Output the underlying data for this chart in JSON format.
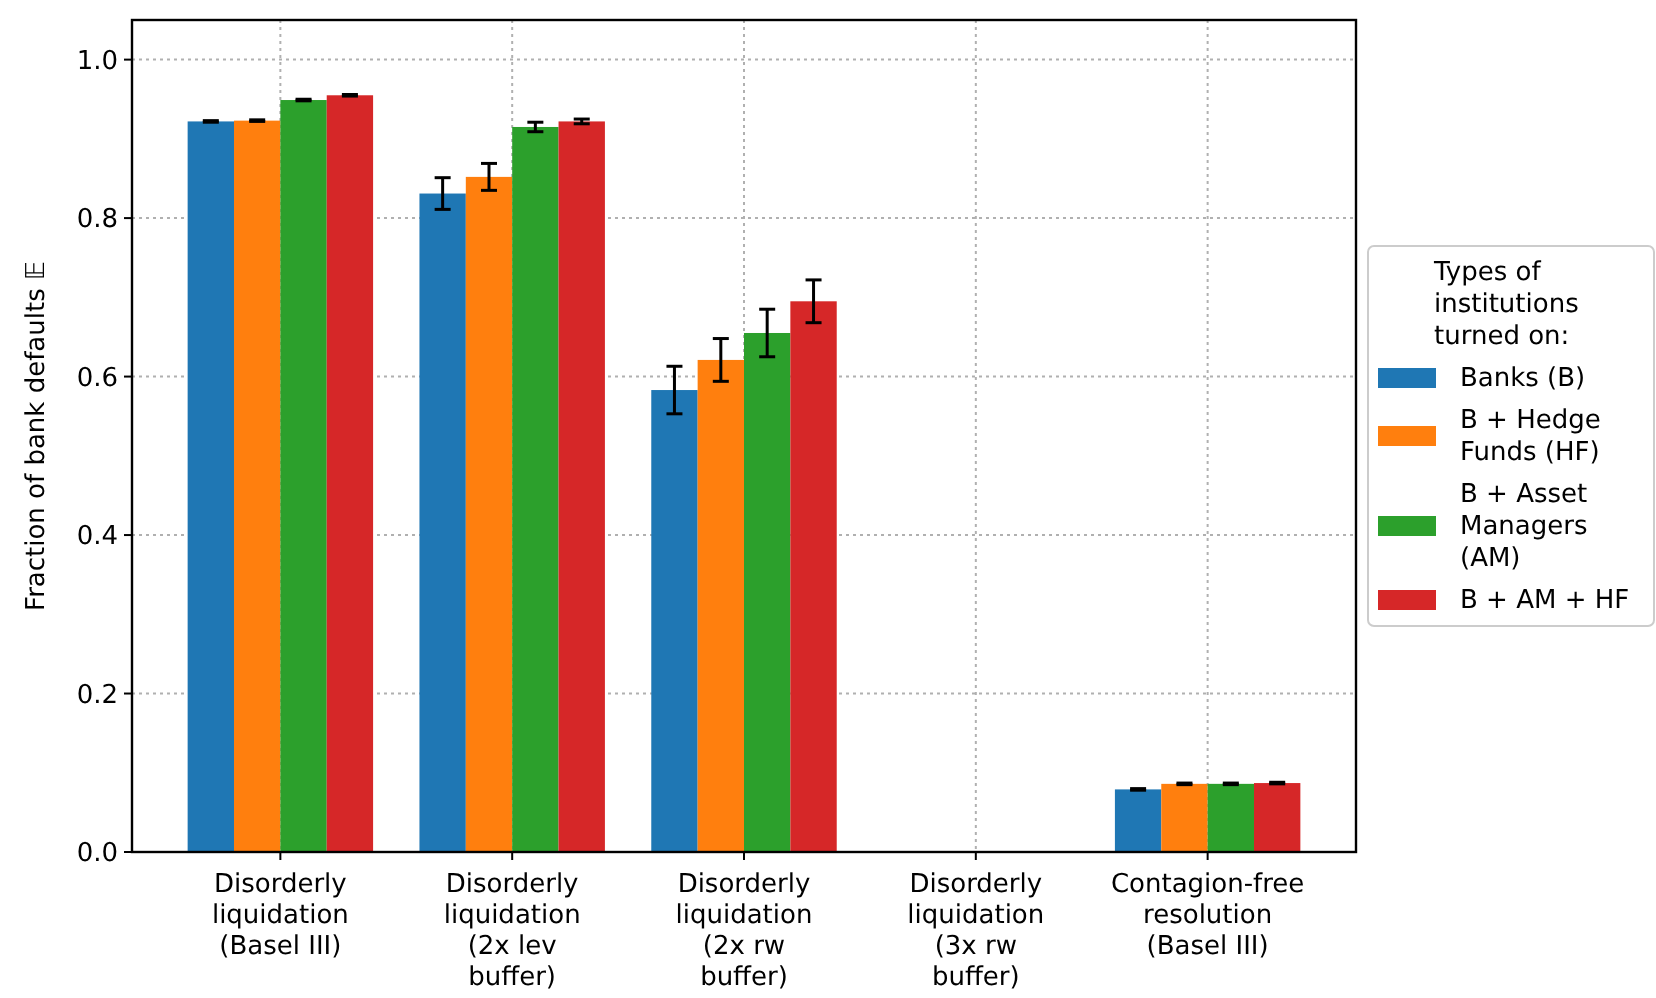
{
  "chart_data": {
    "type": "bar",
    "ylabel": "Fraction of bank defaults 𝔼",
    "legend_title": "Types of institutions turned on:",
    "categories": [
      "Disorderly liquidation (Basel III)",
      "Disorderly liquidation (2x lev buffer)",
      "Disorderly liquidation (2x rw buffer)",
      "Disorderly liquidation (3x rw buffer)",
      "Contagion-free resolution (Basel III)"
    ],
    "series": [
      {
        "name": "Banks (B)",
        "color": "#1f77b4",
        "values": [
          0.922,
          0.831,
          0.583,
          0,
          0.079
        ],
        "errors": [
          0.001,
          0.02,
          0.03,
          null,
          0.001
        ]
      },
      {
        "name": "B + Hedge Funds (HF)",
        "color": "#ff7f0e",
        "values": [
          0.923,
          0.852,
          0.621,
          0,
          0.086
        ],
        "errors": [
          0.001,
          0.017,
          0.027,
          null,
          0.001
        ]
      },
      {
        "name": "B + Asset Managers (AM)",
        "color": "#2ca02c",
        "values": [
          0.949,
          0.915,
          0.655,
          0,
          0.086
        ],
        "errors": [
          0.001,
          0.006,
          0.03,
          null,
          0.001
        ]
      },
      {
        "name": "B + AM + HF",
        "color": "#d62728",
        "values": [
          0.955,
          0.922,
          0.695,
          0,
          0.087
        ],
        "errors": [
          0.001,
          0.003,
          0.027,
          null,
          0.001
        ]
      }
    ],
    "ylim": [
      0,
      1.05
    ],
    "yticks": [
      {
        "value": 0,
        "label": "0.0"
      },
      0.2,
      0.4,
      0.6,
      0.8,
      {
        "value": 1,
        "label": "1.0"
      }
    ],
    "grid": true,
    "legend": "right"
  }
}
